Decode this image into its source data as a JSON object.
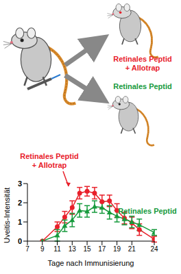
{
  "diagram": {
    "labels": [
      {
        "text": "Retinales Peptid + Allotrap",
        "color": "#e8202a"
      },
      {
        "text": "Retinales Peptid",
        "color": "#169a3c"
      }
    ]
  },
  "chart_data": {
    "type": "line",
    "x_label": "Tage nach Immunisierung",
    "y_label": "Uveitis-Intensität",
    "x": [
      9,
      11,
      12,
      13,
      14,
      15,
      16,
      17,
      18,
      19,
      20,
      21,
      22,
      24
    ],
    "xlim": [
      7,
      24
    ],
    "xticks": [
      7,
      9,
      11,
      13,
      15,
      17,
      19,
      21,
      24
    ],
    "ylim": [
      0,
      3
    ],
    "yticks": [
      0,
      1,
      2,
      3
    ],
    "series": [
      {
        "name": "Retinales Peptid + Allotrap",
        "color": "#e8202a",
        "marker": "circle",
        "values": [
          0,
          0.75,
          1.25,
          1.75,
          2.5,
          2.6,
          2.5,
          2.05,
          2.1,
          1.6,
          1.2,
          0.95,
          0.6,
          0.1
        ],
        "errors": [
          0,
          0.25,
          0.3,
          0.35,
          0.3,
          0.25,
          0.3,
          0.35,
          0.3,
          0.35,
          0.3,
          0.3,
          0.3,
          0.15
        ]
      },
      {
        "name": "Retinales Peptid",
        "color": "#169a3c",
        "marker": "triangle",
        "values": [
          0,
          0.3,
          0.8,
          1.1,
          1.6,
          1.55,
          1.8,
          1.75,
          1.5,
          1.3,
          1.15,
          1.0,
          0.85,
          0.45
        ],
        "errors": [
          0,
          0.3,
          0.3,
          0.35,
          0.35,
          0.3,
          0.3,
          0.3,
          0.35,
          0.3,
          0.3,
          0.3,
          0.3,
          0.15
        ]
      }
    ]
  }
}
